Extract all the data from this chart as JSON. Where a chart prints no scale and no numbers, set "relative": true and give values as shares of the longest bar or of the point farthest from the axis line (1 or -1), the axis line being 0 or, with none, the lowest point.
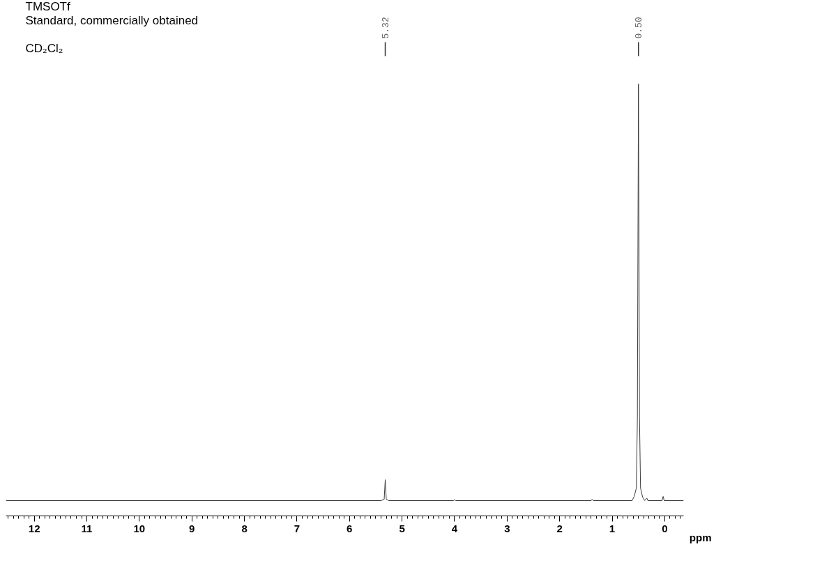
{
  "chart_data": {
    "type": "line",
    "relative": true,
    "title": "TMSOTf",
    "subtitle": "Standard, commercially obtained",
    "xlabel": "ppm",
    "annotations": [
      "CD₂Cl₂",
      {
        "text": "5.32",
        "x": 5.32
      },
      {
        "text": "0.50",
        "x": 0.5
      }
    ],
    "xlim": [
      12.54,
      -0.36
    ],
    "xticks": [
      12,
      11,
      10,
      9,
      8,
      7,
      6,
      5,
      4,
      3,
      2,
      1,
      0
    ],
    "grid": false,
    "marker": "none",
    "line_style": "solid",
    "series": [
      {
        "color": "#3c3c3c",
        "x": [
          12.54,
          5.4,
          5.34,
          5.32,
          5.3,
          5.25,
          4.02,
          4.0,
          3.98,
          1.4,
          1.38,
          1.36,
          0.62,
          0.58,
          0.54,
          0.52,
          0.5,
          0.48,
          0.46,
          0.42,
          0.38,
          0.34,
          0.32,
          0.05,
          0.03,
          0.01,
          -0.36
        ],
        "values": [
          0,
          0,
          0.003,
          0.05,
          0.003,
          0,
          0,
          0.002,
          0,
          0,
          0.003,
          0,
          0,
          0.01,
          0.03,
          0.2,
          1,
          0.2,
          0.03,
          0.008,
          0,
          0.006,
          0,
          0,
          0.01,
          0,
          0
        ]
      }
    ]
  }
}
